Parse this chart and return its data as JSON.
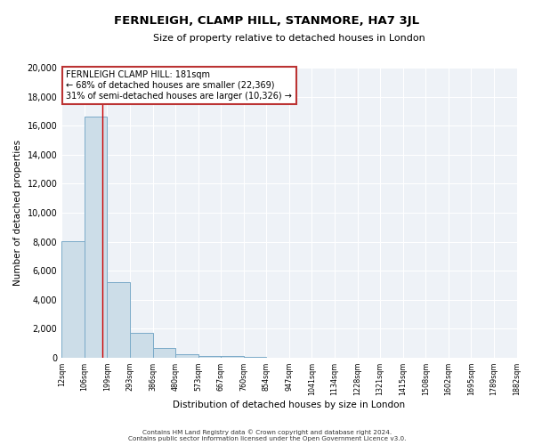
{
  "title": "FERNLEIGH, CLAMP HILL, STANMORE, HA7 3JL",
  "subtitle": "Size of property relative to detached houses in London",
  "xlabel": "Distribution of detached houses by size in London",
  "ylabel": "Number of detached properties",
  "bar_vals": [
    8050,
    16600,
    5200,
    1750,
    700,
    250,
    150,
    100,
    60,
    0,
    0,
    0,
    0,
    0,
    0,
    0,
    0,
    0,
    0,
    0
  ],
  "bar_labels": [
    "12sqm",
    "106sqm",
    "199sqm",
    "293sqm",
    "386sqm",
    "480sqm",
    "573sqm",
    "667sqm",
    "760sqm",
    "854sqm",
    "947sqm",
    "1041sqm",
    "1134sqm",
    "1228sqm",
    "1321sqm",
    "1415sqm",
    "1508sqm",
    "1602sqm",
    "1695sqm",
    "1789sqm",
    "1882sqm"
  ],
  "ylim": [
    0,
    20000
  ],
  "yticks": [
    0,
    2000,
    4000,
    6000,
    8000,
    10000,
    12000,
    14000,
    16000,
    18000,
    20000
  ],
  "bar_color": "#ccdde8",
  "bar_edge_color": "#7aaac8",
  "annotation_text": "FERNLEIGH CLAMP HILL: 181sqm\n← 68% of detached houses are smaller (22,369)\n31% of semi-detached houses are larger (10,326) →",
  "footer_line1": "Contains HM Land Registry data © Crown copyright and database right 2024.",
  "footer_line2": "Contains public sector information licensed under the Open Government Licence v3.0.",
  "background_color": "#eef2f7",
  "grid_color": "#ffffff",
  "fig_bg_color": "#ffffff"
}
